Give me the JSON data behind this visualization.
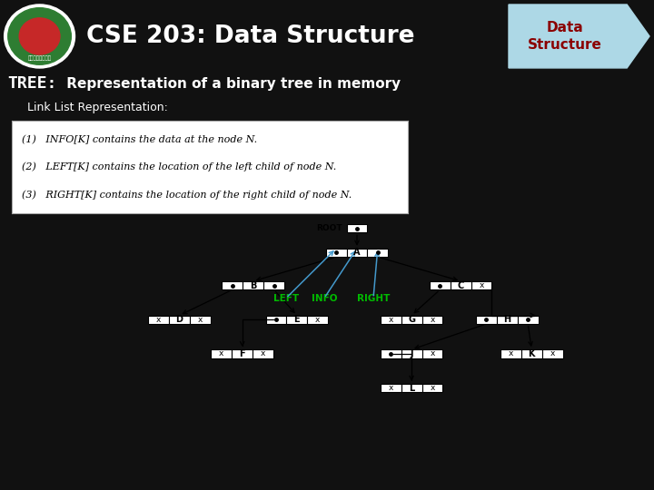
{
  "title": "CSE 203: Data Structure",
  "badge_text": "Data\nStructure",
  "subtitle_bold": "TREE:",
  "subtitle_normal": " Representation of a binary tree in memory",
  "subtitle3": "  Link List Representation:",
  "header_bg": "#8B0000",
  "badge_bg": "#ADD8E6",
  "badge_text_color": "#8B0000",
  "body_bg": "#111111",
  "info_lines": [
    "(1)   INFO[K] contains the data at the node N.",
    "(2)   LEFT[K] contains the location of the left child of node N.",
    "(3)   RIGHT[K] contains the location of the right child of node N."
  ],
  "left_label": "LEFT",
  "info_label": "INFO",
  "right_label": "RIGHT",
  "label_color": "#00BB00",
  "arrow_color": "#4499CC",
  "bottom_bar_color": "#8B0000"
}
